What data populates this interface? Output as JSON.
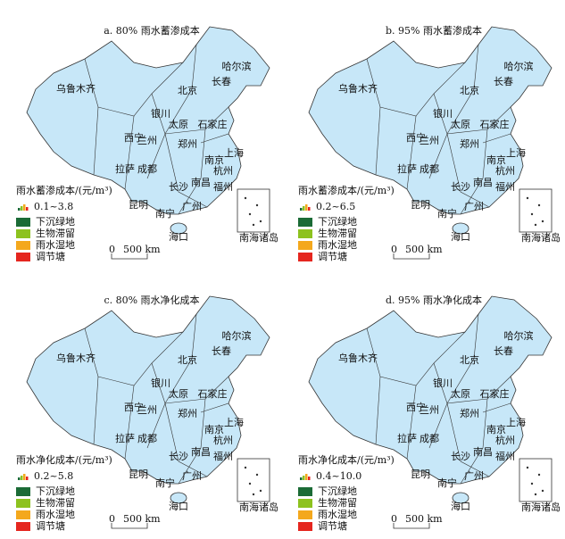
{
  "panels": [
    {
      "title": "a. 80% 雨水蓄渗成本",
      "legend_title": "雨水蓄渗成本/(元/m³)",
      "range": "0.1~3.8"
    },
    {
      "title": "b. 95% 雨水蓄渗成本",
      "legend_title": "雨水蓄渗成本/(元/m³)",
      "range": "0.2~6.5"
    },
    {
      "title": "c. 80% 雨水净化成本",
      "legend_title": "雨水净化成本/(元/m³)",
      "range": "0.2~5.8"
    },
    {
      "title": "d. 95% 雨水净化成本",
      "legend_title": "雨水净化成本/(元/m³)",
      "range": "0.4~10.0"
    }
  ],
  "legend": [
    {
      "label": "下沉绿地",
      "color": "#1b6b36"
    },
    {
      "label": "生物滞留",
      "color": "#8dc21f"
    },
    {
      "label": "雨水湿地",
      "color": "#f4a81d"
    },
    {
      "label": "调节塘",
      "color": "#e5261f"
    }
  ],
  "scale": {
    "zero": "0",
    "distance": "500 km"
  },
  "inset_label": "南海诸岛",
  "cities": [
    "乌鲁木齐",
    "拉萨",
    "西宁",
    "兰州",
    "银川",
    "北京",
    "长春",
    "哈尔滨",
    "石家庄",
    "太原",
    "郑州",
    "成都",
    "昆明",
    "南宁",
    "海口",
    "广州",
    "长沙",
    "南昌",
    "福州",
    "南京",
    "杭州",
    "上海"
  ]
}
